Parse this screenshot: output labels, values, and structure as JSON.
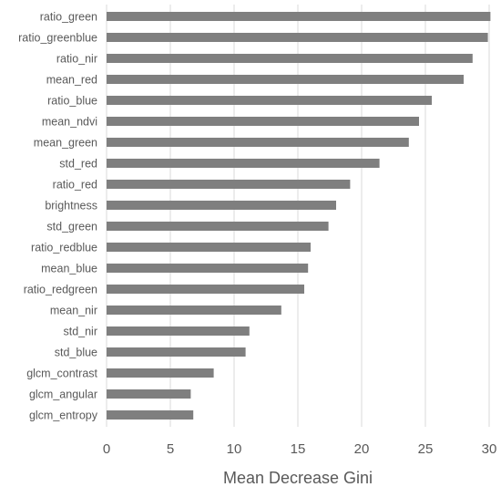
{
  "chart_data": {
    "type": "bar",
    "orientation": "horizontal",
    "categories": [
      "ratio_green",
      "ratio_greenblue",
      "ratio_nir",
      "mean_red",
      "ratio_blue",
      "mean_ndvi",
      "mean_green",
      "std_red",
      "ratio_red",
      "brightness",
      "std_green",
      "ratio_redblue",
      "mean_blue",
      "ratio_redgreen",
      "mean_nir",
      "std_nir",
      "std_blue",
      "glcm_contrast",
      "glcm_angular",
      "glcm_entropy"
    ],
    "values": [
      30.1,
      29.9,
      28.7,
      28.0,
      25.5,
      24.5,
      23.7,
      21.4,
      19.1,
      18.0,
      17.4,
      16.0,
      15.8,
      15.5,
      13.7,
      11.2,
      10.9,
      8.4,
      6.6,
      6.8
    ],
    "xticks": [
      0,
      5,
      10,
      15,
      20,
      25,
      30
    ],
    "xlim": [
      0,
      30
    ],
    "xlabel": "Mean Decrease Gini",
    "grid": "vertical",
    "color": "#7f7f7f"
  }
}
